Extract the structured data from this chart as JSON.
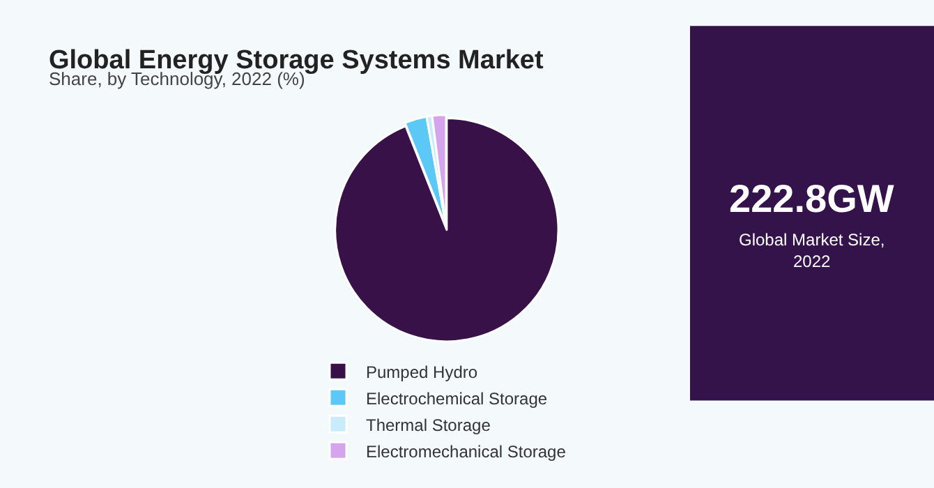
{
  "chart_data": {
    "type": "pie",
    "title": "Global Energy Storage Systems Market",
    "subtitle": "Share, by Technology, 2022 (%)",
    "categories": [
      "Pumped Hydro",
      "Electrochemical Storage",
      "Thermal Storage",
      "Electromechanical Storage"
    ],
    "values": [
      94.0,
      3.2,
      0.8,
      2.0
    ],
    "colors": [
      "#371147",
      "#5bc8f5",
      "#c9ecfb",
      "#d4a5ec"
    ],
    "legend": "bottom",
    "annotations": [
      "222.8GW",
      "Global Market Size,\n2022"
    ]
  }
}
